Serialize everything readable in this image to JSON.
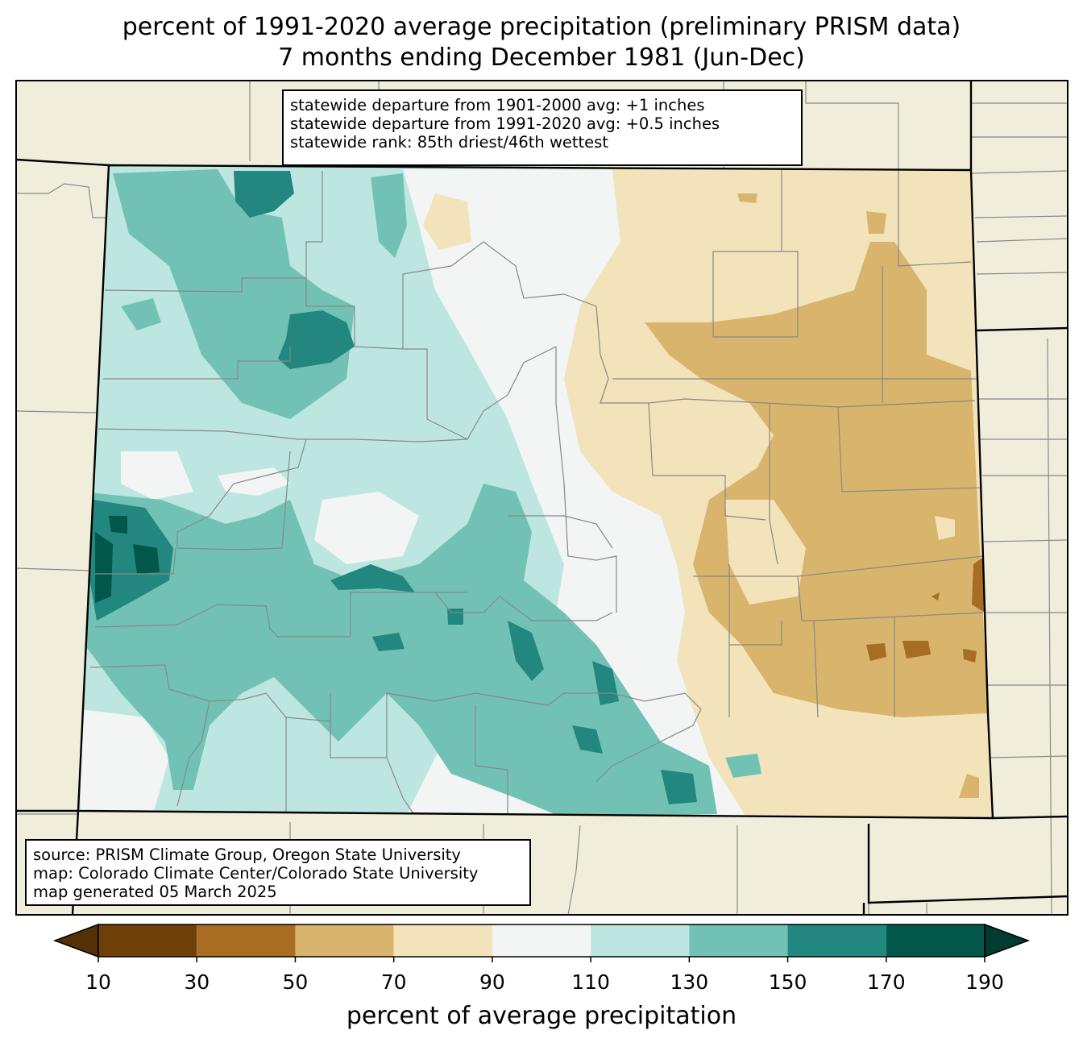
{
  "title": {
    "line1": "percent of 1991-2020 average precipitation (preliminary PRISM data)",
    "line2": "7 months ending December 1981 (Jun-Dec)"
  },
  "stats": {
    "line1": "statewide departure from 1901-2000 avg: +1 inches",
    "line2": "statewide departure from 1991-2020 avg: +0.5 inches",
    "line3": "statewide rank: 85th driest/46th wettest"
  },
  "source": {
    "line1": "source: PRISM Climate Group, Oregon State University",
    "line2": "map: Colorado Climate Center/Colorado State University",
    "line3": "map generated 05 March 2025"
  },
  "colorbar": {
    "label": "percent of average precipitation",
    "ticks": [
      "10",
      "30",
      "50",
      "70",
      "90",
      "110",
      "130",
      "150",
      "170",
      "190"
    ],
    "under_color": "#543005",
    "over_color": "#003c30",
    "bins": [
      {
        "from": 10,
        "to": 30,
        "color": "#6f3f0a"
      },
      {
        "from": 30,
        "to": 50,
        "color": "#a96c23"
      },
      {
        "from": 50,
        "to": 70,
        "color": "#d8b46c"
      },
      {
        "from": 70,
        "to": 90,
        "color": "#f3e3bb"
      },
      {
        "from": 90,
        "to": 110,
        "color": "#f3f5f4"
      },
      {
        "from": 110,
        "to": 130,
        "color": "#bee6e0"
      },
      {
        "from": 130,
        "to": 150,
        "color": "#71c2b5"
      },
      {
        "from": 150,
        "to": 170,
        "color": "#22877e"
      },
      {
        "from": 170,
        "to": 190,
        "color": "#00574a"
      }
    ]
  },
  "colors": {
    "background_land": "#f0eedb",
    "county_lines": "#888888",
    "state_lines": "#000000"
  }
}
